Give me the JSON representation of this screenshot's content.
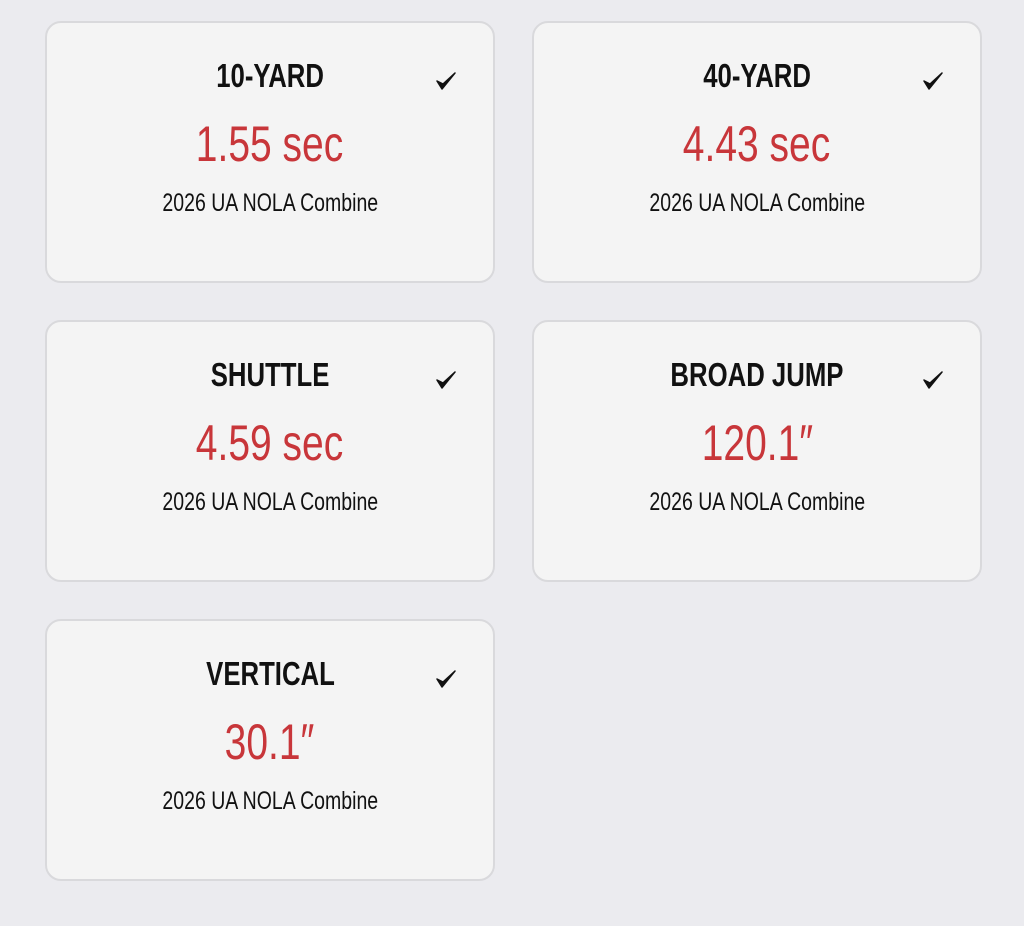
{
  "cards": [
    {
      "title": "10-YARD",
      "value": "1.55 sec",
      "event": "2026 UA NOLA Combine"
    },
    {
      "title": "40-YARD",
      "value": "4.43 sec",
      "event": "2026 UA NOLA Combine"
    },
    {
      "title": "SHUTTLE",
      "value": "4.59 sec",
      "event": "2026 UA NOLA Combine"
    },
    {
      "title": "BROAD JUMP",
      "value": "120.1″",
      "event": "2026 UA NOLA Combine"
    },
    {
      "title": "VERTICAL",
      "value": "30.1″",
      "event": "2026 UA NOLA Combine"
    }
  ]
}
